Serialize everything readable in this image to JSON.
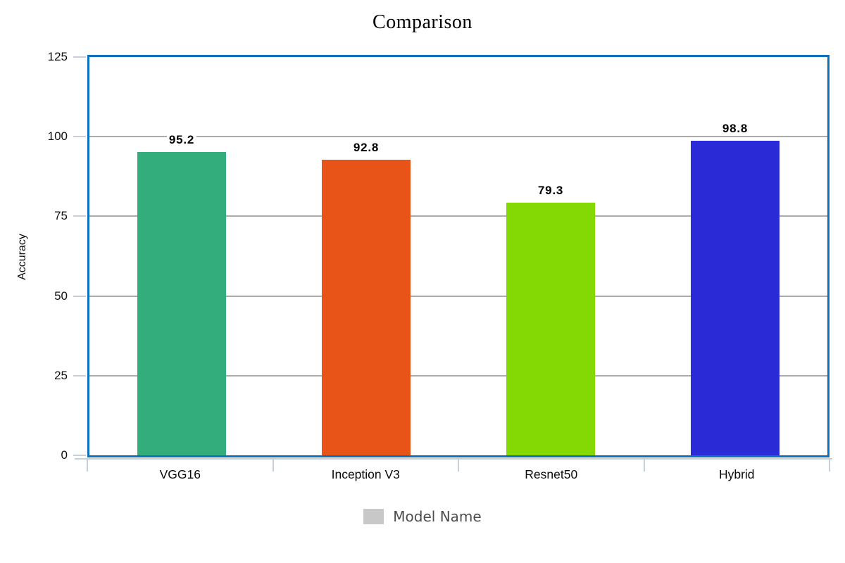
{
  "title": "Comparison",
  "y_axis": {
    "label": "Accuracy",
    "ticks": [
      "125",
      "100",
      "75",
      "50",
      "25",
      "0"
    ]
  },
  "legend": {
    "label": "Model Name",
    "swatch_color": "#c8c8c8"
  },
  "chart_data": {
    "type": "bar",
    "title": "Comparison",
    "categories": [
      "VGG16",
      "Inception V3",
      "Resnet50",
      "Hybrid"
    ],
    "values": [
      95.2,
      92.8,
      79.3,
      98.8
    ],
    "value_labels": [
      "95.2",
      "92.8",
      "79.3",
      "98.8"
    ],
    "bar_colors": [
      "#34ad7c",
      "#e85317",
      "#84d804",
      "#2a2ad7"
    ],
    "xlabel": "Model Name",
    "ylabel": "Accuracy",
    "ylim": [
      0,
      125
    ],
    "y_ticks": [
      0,
      25,
      50,
      75,
      100,
      125
    ],
    "grid": true,
    "legend_position": "bottom",
    "frame_color": "#0c70bd",
    "gridline_color": "#ababab",
    "axis_line_color": "#c6d0dc"
  }
}
